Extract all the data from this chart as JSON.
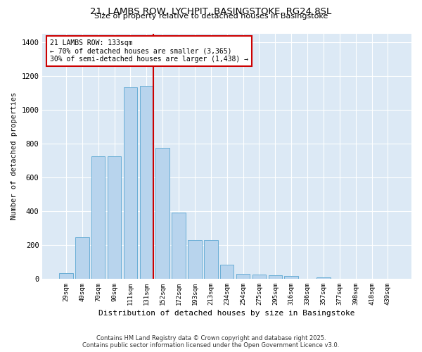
{
  "title_line1": "21, LAMBS ROW, LYCHPIT, BASINGSTOKE, RG24 8SL",
  "title_line2": "Size of property relative to detached houses in Basingstoke",
  "xlabel": "Distribution of detached houses by size in Basingstoke",
  "ylabel": "Number of detached properties",
  "categories": [
    "29sqm",
    "49sqm",
    "70sqm",
    "90sqm",
    "111sqm",
    "131sqm",
    "152sqm",
    "172sqm",
    "193sqm",
    "213sqm",
    "234sqm",
    "254sqm",
    "275sqm",
    "295sqm",
    "316sqm",
    "336sqm",
    "357sqm",
    "377sqm",
    "398sqm",
    "418sqm",
    "439sqm"
  ],
  "values": [
    35,
    245,
    725,
    725,
    1130,
    1140,
    775,
    390,
    230,
    230,
    85,
    30,
    25,
    20,
    15,
    0,
    10,
    0,
    0,
    0,
    0
  ],
  "bar_color": "#b8d4ed",
  "bar_edge_color": "#6aaed6",
  "vline_color": "#cc0000",
  "annotation_text_line1": "21 LAMBS ROW: 133sqm",
  "annotation_text_line2": "← 70% of detached houses are smaller (3,365)",
  "annotation_text_line3": "30% of semi-detached houses are larger (1,438) →",
  "annotation_box_color": "#cc0000",
  "ylim": [
    0,
    1450
  ],
  "yticks": [
    0,
    200,
    400,
    600,
    800,
    1000,
    1200,
    1400
  ],
  "bg_color": "#dce9f5",
  "footer_line1": "Contains HM Land Registry data © Crown copyright and database right 2025.",
  "footer_line2": "Contains public sector information licensed under the Open Government Licence v3.0."
}
